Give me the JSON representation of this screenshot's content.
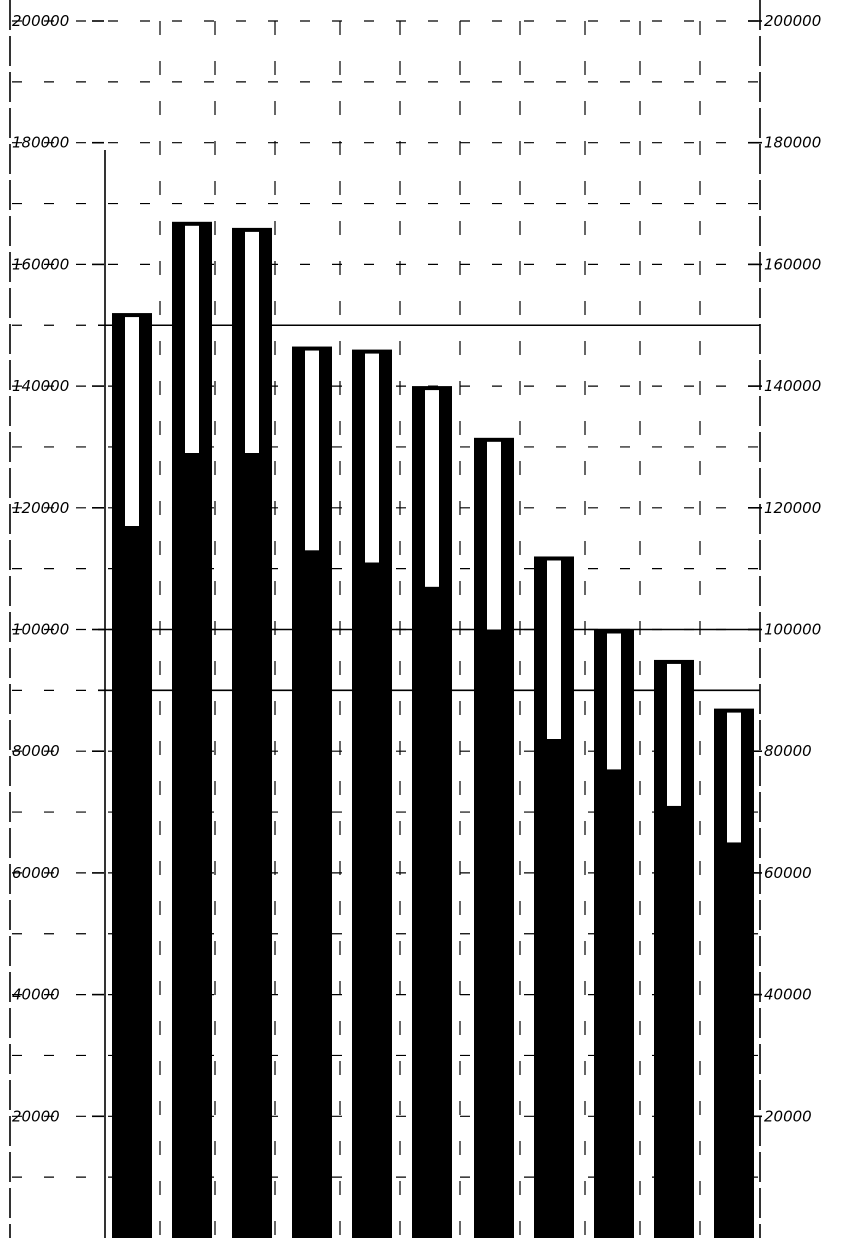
{
  "chart_data": {
    "type": "bar",
    "title": "",
    "xlabel": "",
    "ylabel": "",
    "ylim": [
      0,
      200000
    ],
    "grid": true,
    "left_tick_labels": [
      "20000",
      "40000",
      "60000",
      "80000",
      "100000",
      "120000",
      "140000",
      "160000",
      "180000",
      "200000"
    ],
    "right_tick_labels": [
      "20000",
      "40000",
      "60000",
      "80000",
      "100000",
      "120000",
      "140000",
      "160000",
      "180000",
      "200000"
    ],
    "series": [
      {
        "values": [
          152000,
          167000,
          166000,
          146500,
          146000,
          140000,
          131500,
          112000,
          100000,
          95000,
          87000
        ]
      },
      {
        "values": [
          117000,
          129000,
          129000,
          113000,
          111000,
          107000,
          100000,
          82000,
          77000,
          71000,
          65000
        ]
      }
    ],
    "colors": {
      "bar": "#000000",
      "outline_fill": "#ffffff",
      "grid": "#000000",
      "background": "#ffffff"
    }
  }
}
